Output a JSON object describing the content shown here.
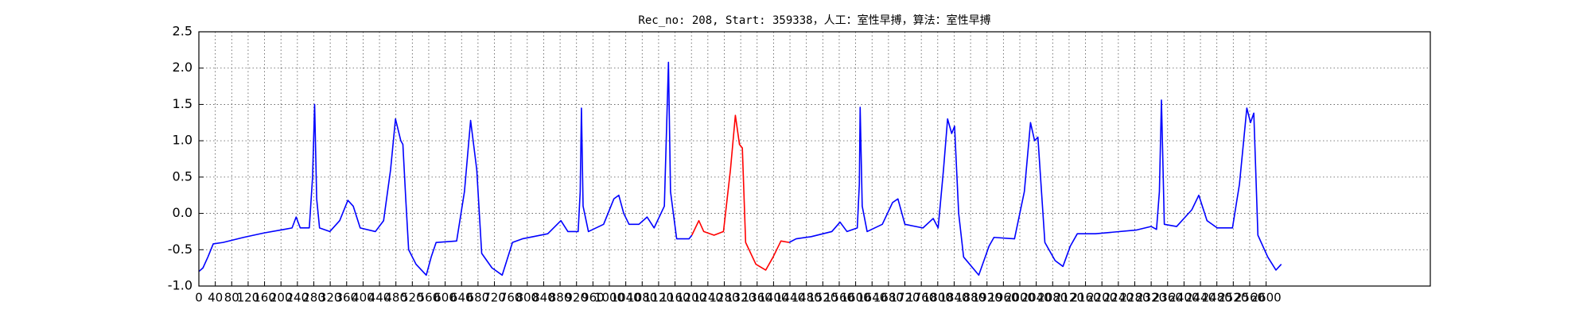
{
  "chart_data": {
    "type": "line",
    "title": "Rec_no: 208, Start: 359338，人工：室性早搏，算法：室性早搏",
    "xlim": [
      0,
      3000
    ],
    "ylim": [
      -1,
      2.5
    ],
    "xticks": [
      0,
      40,
      80,
      120,
      160,
      200,
      240,
      280,
      320,
      360,
      400,
      440,
      480,
      520,
      560,
      600,
      640,
      680,
      720,
      760,
      800,
      840,
      880,
      920,
      960,
      1000,
      1040,
      1080,
      1120,
      1160,
      1200,
      1240,
      1280,
      1320,
      1360,
      1400,
      1440,
      1480,
      1520,
      1560,
      1600,
      1640,
      1680,
      1720,
      1760,
      1800,
      1840,
      1880,
      1920,
      1960,
      2000,
      2040,
      2080,
      2120,
      2160,
      2200,
      2240,
      2280,
      2320,
      2360,
      2400,
      2440,
      2480,
      2520,
      2560,
      2600
    ],
    "yticks": [
      {
        "value": -1,
        "label": "-1.0"
      },
      -0.5,
      {
        "value": 0,
        "label": "0.0"
      },
      0.5,
      {
        "value": 1,
        "label": "1.0"
      },
      1.5,
      {
        "value": 2,
        "label": "2.0"
      },
      2.5
    ],
    "grid": true,
    "x": [
      0,
      10,
      22,
      35,
      59,
      109,
      158,
      208,
      227,
      237,
      247,
      269,
      277,
      282,
      287,
      294,
      319,
      343,
      363,
      376,
      393,
      430,
      450,
      467,
      479,
      492,
      497,
      504,
      511,
      529,
      554,
      566,
      578,
      628,
      647,
      662,
      677,
      689,
      714,
      739,
      764,
      788,
      850,
      882,
      899,
      924,
      929,
      932,
      936,
      949,
      986,
      1011,
      1023,
      1035,
      1048,
      1072,
      1092,
      1109,
      1134,
      1144,
      1149,
      1164,
      1194,
      1201,
      1218,
      1230,
      1255,
      1278,
      1295,
      1307,
      1317,
      1324,
      1332,
      1357,
      1381,
      1399,
      1418,
      1438,
      1455,
      1492,
      1542,
      1562,
      1579,
      1604,
      1609,
      1611,
      1616,
      1628,
      1665,
      1690,
      1703,
      1720,
      1764,
      1789,
      1801,
      1814,
      1824,
      1834,
      1841,
      1851,
      1863,
      1900,
      1925,
      1937,
      1987,
      2011,
      2026,
      2036,
      2044,
      2061,
      2086,
      2105,
      2123,
      2140,
      2184,
      2283,
      2320,
      2333,
      2340,
      2345,
      2352,
      2382,
      2419,
      2436,
      2456,
      2481,
      2518,
      2535,
      2553,
      2562,
      2570,
      2580,
      2604,
      2624,
      2637
    ],
    "series": [
      {
        "color": "#0000ff",
        "values": [
          -0.8,
          -0.75,
          -0.6,
          -0.42,
          -0.4,
          -0.33,
          -0.27,
          -0.22,
          -0.2,
          -0.05,
          -0.2,
          -0.2,
          0.5,
          1.5,
          0.2,
          -0.2,
          -0.25,
          -0.1,
          0.18,
          0.1,
          -0.2,
          -0.25,
          -0.1,
          0.6,
          1.3,
          1.0,
          0.95,
          0.2,
          -0.5,
          -0.7,
          -0.85,
          -0.6,
          -0.4,
          -0.38,
          0.3,
          1.28,
          0.6,
          -0.55,
          -0.75,
          -0.85,
          -0.4,
          -0.35,
          -0.28,
          -0.1,
          -0.25,
          -0.25,
          0.3,
          1.45,
          0.1,
          -0.25,
          -0.15,
          0.2,
          0.25,
          0.0,
          -0.15,
          -0.15,
          -0.05,
          -0.2,
          0.1,
          2.08,
          0.3,
          -0.35,
          -0.35,
          -0.3,
          null,
          null,
          null,
          null,
          null,
          null,
          null,
          null,
          null,
          null,
          null,
          null,
          null,
          -0.4,
          -0.35,
          -0.32,
          -0.25,
          -0.12,
          -0.25,
          -0.2,
          0.4,
          1.46,
          0.1,
          -0.25,
          -0.15,
          0.15,
          0.2,
          -0.15,
          -0.2,
          -0.07,
          -0.2,
          0.6,
          1.3,
          1.1,
          1.2,
          0.0,
          -0.6,
          -0.85,
          -0.45,
          -0.33,
          -0.35,
          0.3,
          1.25,
          1.0,
          1.05,
          -0.4,
          -0.65,
          -0.73,
          -0.45,
          -0.28,
          -0.28,
          -0.23,
          -0.18,
          -0.22,
          0.3,
          1.56,
          -0.15,
          -0.18,
          0.05,
          0.25,
          -0.1,
          -0.2,
          -0.2,
          0.4,
          1.45,
          1.25,
          1.38,
          -0.3,
          -0.6,
          -0.78,
          -0.7
        ]
      },
      {
        "color": "#ff0000",
        "values": [
          null,
          null,
          null,
          null,
          null,
          null,
          null,
          null,
          null,
          null,
          null,
          null,
          null,
          null,
          null,
          null,
          null,
          null,
          null,
          null,
          null,
          null,
          null,
          null,
          null,
          null,
          null,
          null,
          null,
          null,
          null,
          null,
          null,
          null,
          null,
          null,
          null,
          null,
          null,
          null,
          null,
          null,
          null,
          null,
          null,
          null,
          null,
          null,
          null,
          null,
          null,
          null,
          null,
          null,
          null,
          null,
          null,
          null,
          null,
          null,
          null,
          null,
          null,
          -0.3,
          -0.1,
          -0.25,
          -0.3,
          -0.25,
          0.6,
          1.35,
          0.95,
          0.9,
          -0.4,
          -0.7,
          -0.78,
          -0.6,
          -0.38,
          -0.4,
          null,
          null,
          null,
          null,
          null,
          null,
          null,
          null,
          null,
          null,
          null,
          null,
          null,
          null,
          null,
          null,
          null,
          null,
          null,
          null,
          null,
          null,
          null,
          null,
          null,
          null,
          null,
          null,
          null,
          null,
          null,
          null,
          null,
          null,
          null,
          null,
          null,
          null,
          null,
          null,
          null,
          null,
          null,
          null,
          null,
          null,
          null,
          null,
          null,
          null,
          null,
          null,
          null,
          null,
          null,
          null,
          null
        ]
      }
    ]
  }
}
